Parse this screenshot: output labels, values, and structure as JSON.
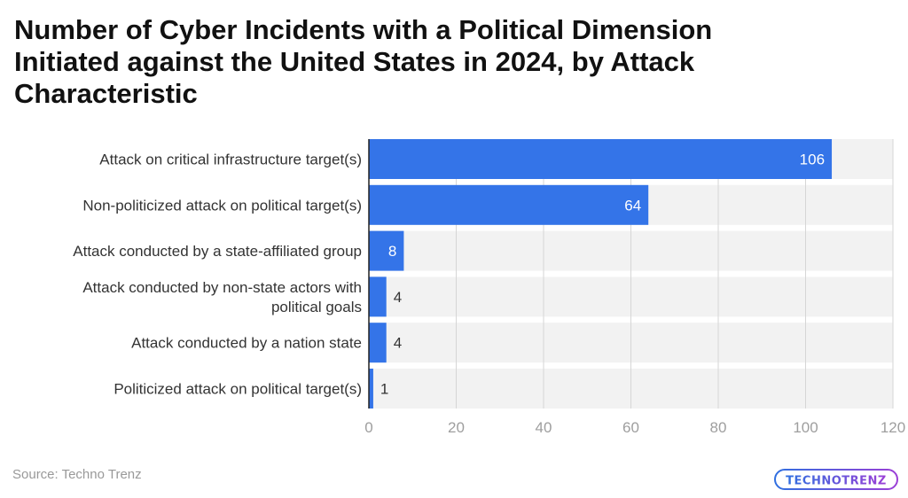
{
  "title": "Number of Cyber Incidents with a Political Dimension Initiated against the United States in 2024, by Attack Characteristic",
  "source": "Source: Techno Trenz",
  "logo_text": "TECHNOTRENZ",
  "colors": {
    "bar": "#3474E8",
    "track": "#F2F2F2",
    "grid": "#D6D6D6",
    "tick": "#9E9E9E",
    "label": "#333333"
  },
  "chart_data": {
    "type": "bar",
    "orientation": "horizontal",
    "categories": [
      "Attack on critical infrastructure target(s)",
      "Non-politicized attack on political target(s)",
      "Attack conducted by a state-affiliated group",
      "Attack conducted by non-state actors with political goals",
      "Attack conducted by a nation state",
      "Politicized attack on political target(s)"
    ],
    "values": [
      106,
      64,
      8,
      4,
      4,
      1
    ],
    "xlim": [
      0,
      120
    ],
    "xticks": [
      0,
      20,
      40,
      60,
      80,
      100,
      120
    ],
    "grid": true,
    "data_labels": true
  }
}
